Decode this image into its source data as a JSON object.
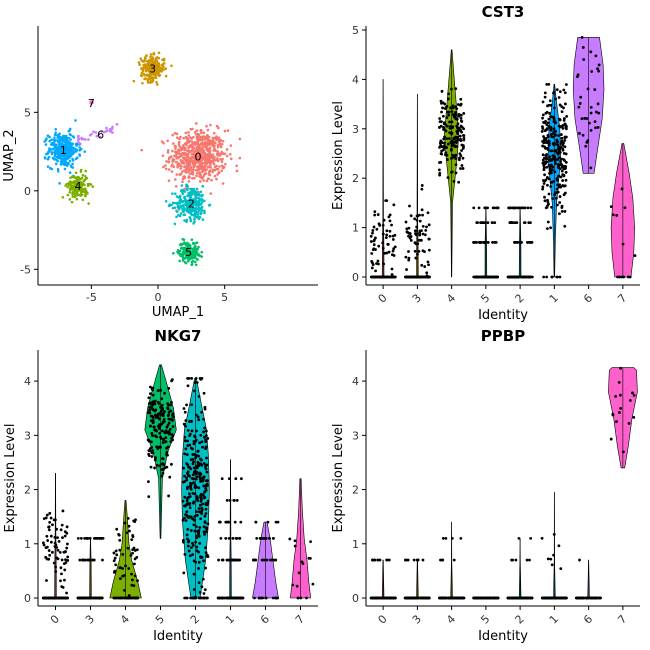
{
  "chart_data": [
    {
      "type": "scatter",
      "title": "",
      "xlabel": "UMAP_1",
      "ylabel": "UMAP_2",
      "xlim": [
        -9,
        12
      ],
      "ylim": [
        -6,
        10.5
      ],
      "xticks": [
        -5,
        0,
        5
      ],
      "yticks": [
        -5,
        0,
        5
      ],
      "grid": false,
      "legend": "none",
      "clusters": [
        {
          "label": "0",
          "color": "#F8766D",
          "center": [
            3.0,
            2.2
          ],
          "spread": [
            1.9,
            1.5
          ],
          "count": 620,
          "label_pos": [
            3.0,
            2.2
          ]
        },
        {
          "label": "1",
          "color": "#00A9FF",
          "center": [
            -7.1,
            2.6
          ],
          "spread": [
            1.0,
            1.0
          ],
          "count": 330,
          "label_pos": [
            -7.1,
            2.6
          ]
        },
        {
          "label": "2",
          "color": "#00BFC4",
          "center": [
            2.5,
            -0.8
          ],
          "spread": [
            1.1,
            1.0
          ],
          "count": 260,
          "label_pos": [
            2.5,
            -0.8
          ]
        },
        {
          "label": "3",
          "color": "#CD9600",
          "center": [
            -0.4,
            7.8
          ],
          "spread": [
            0.8,
            0.7
          ],
          "count": 230,
          "label_pos": [
            -0.4,
            7.8
          ]
        },
        {
          "label": "4",
          "color": "#7CAE00",
          "center": [
            -6.0,
            0.3
          ],
          "spread": [
            0.7,
            0.7
          ],
          "count": 170,
          "label_pos": [
            -6.0,
            0.3
          ]
        },
        {
          "label": "5",
          "color": "#00BE67",
          "center": [
            2.3,
            -3.9
          ],
          "spread": [
            0.7,
            0.6
          ],
          "count": 160,
          "label_pos": [
            2.3,
            -3.9
          ]
        },
        {
          "label": "6",
          "color": "#C77CFF",
          "center": [
            -4.3,
            3.6
          ],
          "spread": [
            1.3,
            0.4
          ],
          "count": 30,
          "label_pos": [
            -4.3,
            3.6
          ]
        },
        {
          "label": "7",
          "color": "#FF61CC",
          "center": [
            -5.0,
            5.6
          ],
          "spread": [
            0.1,
            0.1
          ],
          "count": 12,
          "label_pos": [
            -5.0,
            5.6
          ]
        }
      ]
    },
    {
      "type": "violin",
      "title": "CST3",
      "xlabel": "Identity",
      "ylabel": "Expression Level",
      "ylim": [
        0,
        5
      ],
      "yticks": [
        0,
        1,
        2,
        3,
        4,
        5
      ],
      "categories": [
        "0",
        "3",
        "4",
        "5",
        "2",
        "1",
        "6",
        "7"
      ],
      "colors": [
        "#F8766D",
        "#CD9600",
        "#7CAE00",
        "#00BE67",
        "#00BFC4",
        "#00A9FF",
        "#C77CFF",
        "#FF61CC"
      ],
      "violins": [
        {
          "min": 0,
          "max": 4.0,
          "count": 150,
          "zero_frac": 0.55,
          "mean": 0.7,
          "sd": 0.5,
          "body": [
            [
              0,
              0.05
            ],
            [
              0.7,
              0.04
            ],
            [
              1.1,
              0.02
            ],
            [
              4.0,
              0.004
            ]
          ]
        },
        {
          "min": 0,
          "max": 3.7,
          "count": 140,
          "zero_frac": 0.55,
          "mean": 0.7,
          "sd": 0.45,
          "body": [
            [
              0,
              0.05
            ],
            [
              0.7,
              0.04
            ],
            [
              1.1,
              0.02
            ],
            [
              3.7,
              0.004
            ]
          ]
        },
        {
          "min": 0,
          "max": 4.6,
          "count": 170,
          "zero_frac": 0.0,
          "mean": 2.9,
          "sd": 0.45,
          "body": [
            [
              0,
              0.01
            ],
            [
              1.5,
              0.05
            ],
            [
              2.4,
              0.3
            ],
            [
              2.9,
              0.4
            ],
            [
              3.4,
              0.28
            ],
            [
              4.0,
              0.15
            ],
            [
              4.6,
              0.02
            ]
          ]
        },
        {
          "min": 0,
          "max": 1.4,
          "count": 120,
          "zero_frac": 0.6,
          "mean": 0.7,
          "sd": 0.3,
          "body": [
            [
              0,
              0.05
            ],
            [
              0.7,
              0.04
            ],
            [
              1.4,
              0.005
            ]
          ]
        },
        {
          "min": 0,
          "max": 1.4,
          "count": 120,
          "zero_frac": 0.6,
          "mean": 0.7,
          "sd": 0.3,
          "body": [
            [
              0,
              0.05
            ],
            [
              0.7,
              0.04
            ],
            [
              1.4,
              0.005
            ]
          ]
        },
        {
          "min": 0,
          "max": 3.9,
          "count": 280,
          "zero_frac": 0.03,
          "mean": 2.5,
          "sd": 0.6,
          "body": [
            [
              0,
              0.02
            ],
            [
              0.7,
              0.05
            ],
            [
              1.5,
              0.12
            ],
            [
              2.4,
              0.35
            ],
            [
              3.0,
              0.3
            ],
            [
              3.6,
              0.1
            ],
            [
              3.9,
              0.02
            ]
          ]
        },
        {
          "min": 2.1,
          "max": 4.85,
          "count": 35,
          "zero_frac": 0.0,
          "mean": 3.6,
          "sd": 0.6,
          "body": [
            [
              2.1,
              0.3
            ],
            [
              2.6,
              0.5
            ],
            [
              3.2,
              0.75
            ],
            [
              3.8,
              0.85
            ],
            [
              4.3,
              0.8
            ],
            [
              4.85,
              0.6
            ]
          ]
        },
        {
          "min": 0,
          "max": 2.7,
          "count": 14,
          "zero_frac": 0.3,
          "mean": 1.0,
          "sd": 0.6,
          "body": [
            [
              0,
              0.45
            ],
            [
              0.5,
              0.6
            ],
            [
              1.0,
              0.65
            ],
            [
              1.6,
              0.55
            ],
            [
              2.1,
              0.35
            ],
            [
              2.7,
              0.05
            ]
          ]
        }
      ]
    },
    {
      "type": "violin",
      "title": "NKG7",
      "xlabel": "Identity",
      "ylabel": "Expression Level",
      "ylim": [
        0,
        4.5
      ],
      "yticks": [
        0,
        1,
        2,
        3,
        4
      ],
      "categories": [
        "0",
        "3",
        "4",
        "5",
        "2",
        "1",
        "6",
        "7"
      ],
      "colors": [
        "#F8766D",
        "#CD9600",
        "#7CAE00",
        "#00BE67",
        "#00BFC4",
        "#00A9FF",
        "#C77CFF",
        "#FF61CC"
      ],
      "violins": [
        {
          "min": 0,
          "max": 2.3,
          "count": 170,
          "zero_frac": 0.55,
          "mean": 0.9,
          "sd": 0.4,
          "body": [
            [
              0,
              0.05
            ],
            [
              0.7,
              0.04
            ],
            [
              1.1,
              0.02
            ],
            [
              2.3,
              0.004
            ]
          ]
        },
        {
          "min": 0,
          "max": 1.1,
          "count": 120,
          "zero_frac": 0.7,
          "mean": 0.7,
          "sd": 0.1,
          "body": [
            [
              0,
              0.05
            ],
            [
              0.7,
              0.03
            ],
            [
              1.1,
              0.005
            ]
          ]
        },
        {
          "min": 0,
          "max": 1.8,
          "count": 100,
          "zero_frac": 0.45,
          "mean": 0.8,
          "sd": 0.4,
          "body": [
            [
              0,
              0.9
            ],
            [
              0.3,
              0.7
            ],
            [
              0.7,
              0.35
            ],
            [
              1.0,
              0.2
            ],
            [
              1.5,
              0.1
            ],
            [
              1.8,
              0.03
            ]
          ]
        },
        {
          "min": 1.1,
          "max": 4.3,
          "count": 180,
          "zero_frac": 0.0,
          "mean": 3.1,
          "sd": 0.4,
          "body": [
            [
              1.1,
              0.02
            ],
            [
              2.2,
              0.1
            ],
            [
              2.7,
              0.4
            ],
            [
              3.1,
              0.85
            ],
            [
              3.5,
              0.7
            ],
            [
              4.0,
              0.3
            ],
            [
              4.3,
              0.05
            ]
          ]
        },
        {
          "min": 0,
          "max": 4.05,
          "count": 320,
          "zero_frac": 0.05,
          "mean": 2.0,
          "sd": 0.9,
          "body": [
            [
              0,
              0.25
            ],
            [
              0.7,
              0.55
            ],
            [
              1.4,
              0.7
            ],
            [
              2.0,
              0.75
            ],
            [
              2.6,
              0.7
            ],
            [
              3.1,
              0.6
            ],
            [
              3.6,
              0.3
            ],
            [
              4.05,
              0.05
            ]
          ]
        },
        {
          "min": 0,
          "max": 2.55,
          "count": 120,
          "zero_frac": 0.6,
          "mean": 0.8,
          "sd": 0.3,
          "body": [
            [
              0,
              0.05
            ],
            [
              0.7,
              0.04
            ],
            [
              1.1,
              0.02
            ],
            [
              2.55,
              0.004
            ]
          ]
        },
        {
          "min": 0,
          "max": 1.4,
          "count": 50,
          "zero_frac": 0.3,
          "mean": 0.6,
          "sd": 0.3,
          "body": [
            [
              0,
              0.7
            ],
            [
              0.3,
              0.55
            ],
            [
              0.7,
              0.4
            ],
            [
              1.1,
              0.25
            ],
            [
              1.4,
              0.08
            ]
          ]
        },
        {
          "min": 0,
          "max": 2.2,
          "count": 16,
          "zero_frac": 0.3,
          "mean": 0.6,
          "sd": 0.4,
          "body": [
            [
              0,
              0.55
            ],
            [
              0.3,
              0.45
            ],
            [
              0.7,
              0.35
            ],
            [
              1.1,
              0.2
            ],
            [
              1.6,
              0.1
            ],
            [
              2.2,
              0.03
            ]
          ]
        }
      ]
    },
    {
      "type": "violin",
      "title": "PPBP",
      "xlabel": "Identity",
      "ylabel": "Expression Level",
      "ylim": [
        0,
        4.5
      ],
      "yticks": [
        0,
        1,
        2,
        3,
        4
      ],
      "categories": [
        "0",
        "3",
        "4",
        "5",
        "2",
        "1",
        "6",
        "7"
      ],
      "colors": [
        "#F8766D",
        "#CD9600",
        "#7CAE00",
        "#00BE67",
        "#00BFC4",
        "#00A9FF",
        "#C77CFF",
        "#FF61CC"
      ],
      "violins": [
        {
          "min": 0,
          "max": 0.7,
          "count": 120,
          "zero_frac": 0.9,
          "mean": 0.7,
          "sd": 0.0,
          "body": [
            [
              0,
              0.05
            ],
            [
              0.7,
              0.01
            ]
          ]
        },
        {
          "min": 0,
          "max": 0.7,
          "count": 100,
          "zero_frac": 0.93,
          "mean": 0.7,
          "sd": 0.0,
          "body": [
            [
              0,
              0.05
            ],
            [
              0.7,
              0.01
            ]
          ]
        },
        {
          "min": 0,
          "max": 1.4,
          "count": 100,
          "zero_frac": 0.92,
          "mean": 0.8,
          "sd": 0.2,
          "body": [
            [
              0,
              0.05
            ],
            [
              0.7,
              0.01
            ],
            [
              1.4,
              0.003
            ]
          ]
        },
        {
          "min": 0,
          "max": 0.0,
          "count": 90,
          "zero_frac": 1.0,
          "mean": 0,
          "sd": 0,
          "body": [
            [
              0,
              0.05
            ]
          ]
        },
        {
          "min": 0,
          "max": 1.1,
          "count": 110,
          "zero_frac": 0.94,
          "mean": 0.7,
          "sd": 0.1,
          "body": [
            [
              0,
              0.05
            ],
            [
              0.7,
              0.01
            ],
            [
              1.1,
              0.003
            ]
          ]
        },
        {
          "min": 0,
          "max": 1.95,
          "count": 130,
          "zero_frac": 0.9,
          "mean": 0.8,
          "sd": 0.4,
          "body": [
            [
              0,
              0.05
            ],
            [
              0.7,
              0.01
            ],
            [
              1.95,
              0.003
            ]
          ]
        },
        {
          "min": 0,
          "max": 0.7,
          "count": 60,
          "zero_frac": 0.97,
          "mean": 0.7,
          "sd": 0,
          "body": [
            [
              0,
              0.05
            ],
            [
              0.7,
              0.005
            ]
          ]
        },
        {
          "min": 2.4,
          "max": 4.25,
          "count": 16,
          "zero_frac": 0.0,
          "mean": 3.6,
          "sd": 0.4,
          "body": [
            [
              2.4,
              0.1
            ],
            [
              2.8,
              0.3
            ],
            [
              3.3,
              0.5
            ],
            [
              3.8,
              0.8
            ],
            [
              4.2,
              0.75
            ],
            [
              4.25,
              0.6
            ]
          ]
        }
      ]
    }
  ]
}
